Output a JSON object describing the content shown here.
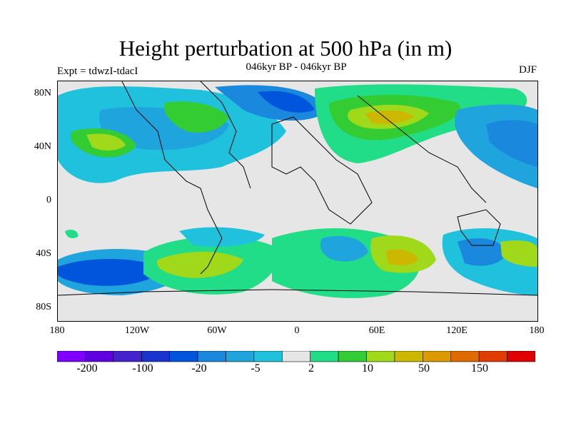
{
  "figure": {
    "title": "Height perturbation at 500 hPa (in m)",
    "subtitle": "046kyr BP - 046kyr BP",
    "experiment": "Expt = tdwzI-tdacI",
    "season": "DJF"
  },
  "axes": {
    "lat_ticks": [
      "80N",
      "40N",
      "0",
      "40S",
      "80S"
    ],
    "lon_ticks": [
      "180",
      "120W",
      "60W",
      "0",
      "60E",
      "120E",
      "180"
    ]
  },
  "colorbar": {
    "colors": [
      "#7f00ff",
      "#6000e0",
      "#4422cc",
      "#1a33cc",
      "#0055dd",
      "#1a88dd",
      "#1fa4dd",
      "#1fc1dd",
      "#e6e6e6",
      "#22dd88",
      "#33cc33",
      "#a0d81a",
      "#cdb800",
      "#dc9a00",
      "#de6a00",
      "#e03c00",
      "#e00000"
    ],
    "labels": [
      "-200",
      "-100",
      "-20",
      "-5",
      "2",
      "10",
      "50",
      "150"
    ]
  }
}
